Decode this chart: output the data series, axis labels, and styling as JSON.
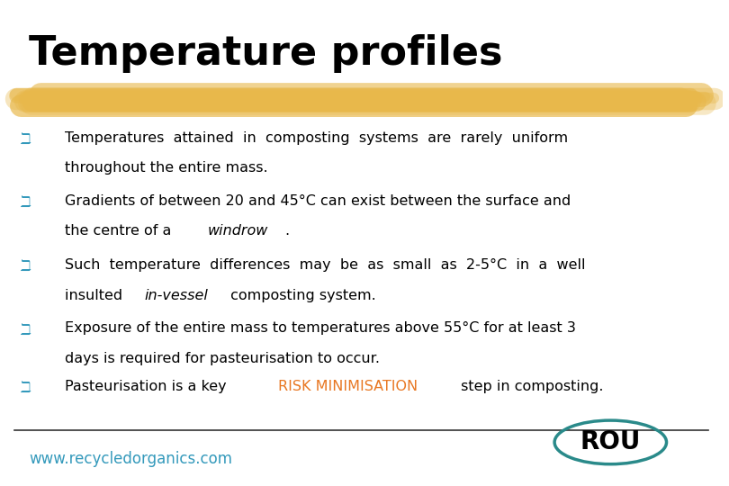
{
  "title": "Temperature profiles",
  "title_color": "#000000",
  "title_fontsize": 32,
  "bg_color": "#ffffff",
  "highlight_color": "#E8B84B",
  "bullet_color": "#3399BB",
  "text_color": "#000000",
  "highlight_color2": "#E87722",
  "footer_text": "www.recycledorganics.com",
  "footer_color": "#3399BB",
  "bullet_char": "ℶ",
  "bullets": [
    {
      "line1": "Temperatures  attained  in  composting  systems  are  rarely  uniform",
      "line2": "throughout the entire mass."
    },
    {
      "line1": "Gradients of between 20 and 45°C can exist between the surface and",
      "line2_parts": [
        {
          "text": "the centre of a ",
          "style": "normal"
        },
        {
          "text": "windrow",
          "style": "italic"
        },
        {
          "text": ".",
          "style": "normal"
        }
      ]
    },
    {
      "line1": "Such  temperature  differences  may  be  as  small  as  2-5°C  in  a  well",
      "line2_parts": [
        {
          "text": "insulted ",
          "style": "normal"
        },
        {
          "text": "in-vessel",
          "style": "italic"
        },
        {
          "text": " composting system.",
          "style": "normal"
        }
      ]
    },
    {
      "line1": "Exposure of the entire mass to temperatures above 55°C for at least 3",
      "line2": "days is required for pasteurisation to occur."
    },
    {
      "line1_parts": [
        {
          "text": "Pasteurisation is a key ",
          "style": "normal",
          "color": "#000000"
        },
        {
          "text": "RISK MINIMISATION",
          "style": "normal",
          "color": "#E87722"
        },
        {
          "text": " step in composting.",
          "style": "normal",
          "color": "#000000"
        }
      ]
    }
  ]
}
